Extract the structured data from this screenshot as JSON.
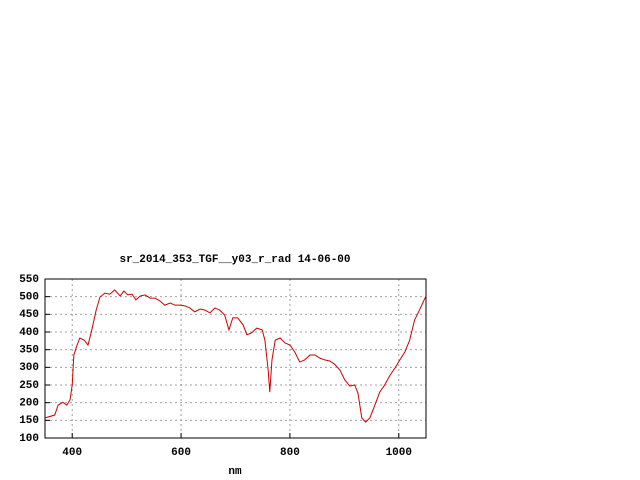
{
  "chart_data": {
    "type": "line",
    "title": "sr_2014_353_TGF__y03_r_rad 14-06-00",
    "xlabel": "nm",
    "x": [
      350,
      368,
      374,
      383,
      390,
      396,
      400,
      403,
      409,
      414,
      422,
      429,
      436,
      444,
      451,
      460,
      469,
      478,
      488,
      495,
      502,
      510,
      517,
      525,
      534,
      543,
      552,
      561,
      570,
      580,
      589,
      598,
      607,
      616,
      625,
      635,
      644,
      653,
      662,
      671,
      680,
      688,
      695,
      704,
      714,
      721,
      730,
      739,
      749,
      754,
      760,
      763,
      767,
      773,
      782,
      791,
      800,
      809,
      818,
      827,
      837,
      846,
      855,
      864,
      873,
      882,
      892,
      901,
      910,
      919,
      925,
      932,
      939,
      947,
      956,
      965,
      974,
      984,
      993,
      1002,
      1011,
      1020,
      1029,
      1038,
      1050
    ],
    "series": [
      {
        "color": "#cc0000",
        "values": [
          157,
          165,
          193,
          201,
          193,
          208,
          250,
          335,
          363,
          383,
          377,
          363,
          406,
          462,
          499,
          510,
          507,
          519,
          502,
          516,
          505,
          507,
          491,
          502,
          505,
          496,
          496,
          488,
          476,
          482,
          476,
          476,
          474,
          468,
          457,
          465,
          462,
          454,
          468,
          462,
          448,
          406,
          440,
          440,
          420,
          392,
          398,
          411,
          406,
          377,
          292,
          230,
          321,
          377,
          383,
          369,
          363,
          343,
          315,
          321,
          335,
          335,
          326,
          321,
          318,
          309,
          292,
          264,
          247,
          250,
          227,
          157,
          145,
          157,
          193,
          230,
          250,
          278,
          298,
          321,
          343,
          377,
          434,
          462,
          502
        ]
      }
    ],
    "xlim": [
      350,
      1050
    ],
    "ylim": [
      100,
      550
    ],
    "xticks": [
      400,
      600,
      800,
      1000
    ],
    "yticks": [
      100,
      150,
      200,
      250,
      300,
      350,
      400,
      450,
      500,
      550
    ],
    "grid": true
  }
}
